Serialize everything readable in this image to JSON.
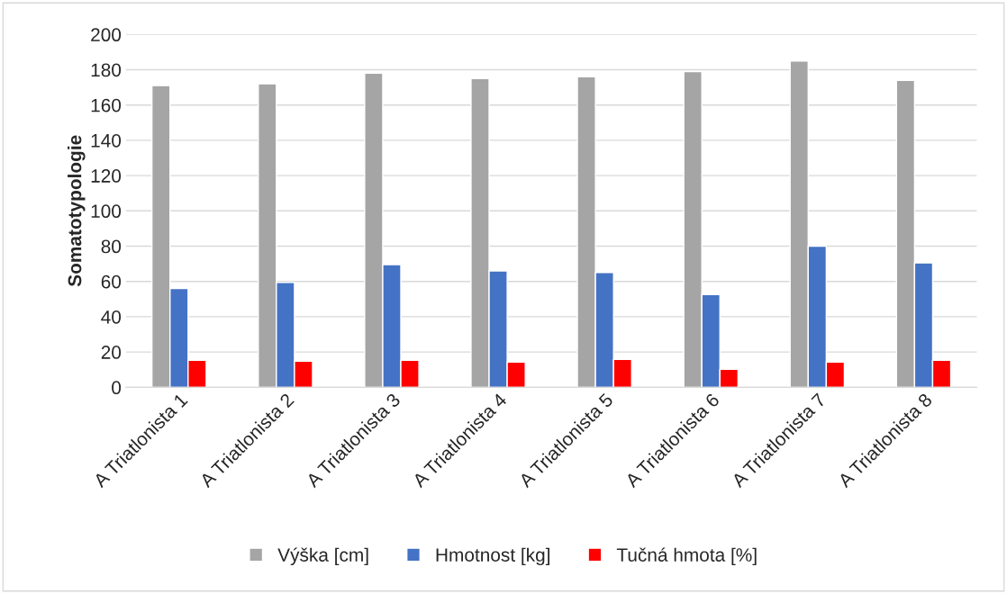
{
  "chart_data": {
    "type": "bar",
    "ylabel": "Somatotypologie",
    "categories": [
      "A Triatlonista 1",
      "A Triatlonista 2",
      "A Triatlonista 3",
      "A Triatlonista 4",
      "A Triatlonista 5",
      "A Triatlonista 6",
      "A Triatlonista 7",
      "A Triatlonista 8"
    ],
    "series": [
      {
        "name": "Výška [cm]",
        "color": "#a5a5a5",
        "values": [
          171,
          172,
          178,
          175,
          176,
          179,
          185,
          174
        ]
      },
      {
        "name": "Hmotnost [kg]",
        "color": "#4472c4",
        "values": [
          56,
          59.5,
          69.5,
          66,
          65,
          52.5,
          80,
          70.5
        ]
      },
      {
        "name": "Tučná hmota [%]",
        "color": "#ff0000",
        "values": [
          15.3,
          14.8,
          15.3,
          14.3,
          15.8,
          10.2,
          14.3,
          15.3
        ]
      }
    ],
    "ylim": [
      0,
      200
    ],
    "yticks": [
      0,
      20,
      40,
      60,
      80,
      100,
      120,
      140,
      160,
      180,
      200
    ],
    "grid": "y",
    "legend": "bottom"
  }
}
